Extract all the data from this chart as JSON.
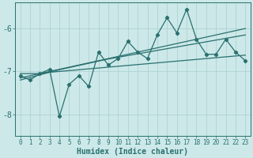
{
  "xlabel": "Humidex (Indice chaleur)",
  "bg_color": "#cce8e8",
  "grid_color": "#aacfcf",
  "line_color": "#2a7070",
  "x": [
    0,
    1,
    2,
    3,
    4,
    5,
    6,
    7,
    8,
    9,
    10,
    11,
    12,
    13,
    14,
    15,
    16,
    17,
    18,
    19,
    20,
    21,
    22,
    23
  ],
  "y_main": [
    -7.1,
    -7.2,
    -7.05,
    -6.95,
    -8.05,
    -7.3,
    -7.1,
    -7.35,
    -6.55,
    -6.85,
    -6.7,
    -6.3,
    -6.55,
    -6.7,
    -6.15,
    -5.75,
    -6.1,
    -5.55,
    -6.25,
    -6.6,
    -6.6,
    -6.25,
    -6.55,
    -6.75
  ],
  "y_flat": [
    -7.05,
    -7.05,
    -7.05,
    -7.02,
    -7.0,
    -6.98,
    -6.96,
    -6.94,
    -6.92,
    -6.9,
    -6.88,
    -6.86,
    -6.84,
    -6.82,
    -6.8,
    -6.78,
    -6.76,
    -6.74,
    -6.72,
    -6.7,
    -6.68,
    -6.66,
    -6.64,
    -6.62
  ],
  "y_slope1": [
    -7.15,
    -7.1,
    -7.05,
    -7.0,
    -6.95,
    -6.9,
    -6.85,
    -6.8,
    -6.75,
    -6.7,
    -6.65,
    -6.6,
    -6.55,
    -6.5,
    -6.45,
    -6.4,
    -6.35,
    -6.3,
    -6.25,
    -6.2,
    -6.15,
    -6.1,
    -6.05,
    -6.0
  ],
  "y_slope2": [
    -7.2,
    -7.14,
    -7.08,
    -7.02,
    -6.96,
    -6.91,
    -6.86,
    -6.81,
    -6.76,
    -6.71,
    -6.67,
    -6.63,
    -6.59,
    -6.55,
    -6.51,
    -6.47,
    -6.43,
    -6.39,
    -6.35,
    -6.31,
    -6.27,
    -6.23,
    -6.19,
    -6.15
  ],
  "ylim": [
    -8.5,
    -5.4
  ],
  "yticks": [
    -8,
    -7,
    -6
  ],
  "xlim": [
    -0.5,
    23.5
  ],
  "tick_fontsize": 5.5,
  "xlabel_fontsize": 7
}
